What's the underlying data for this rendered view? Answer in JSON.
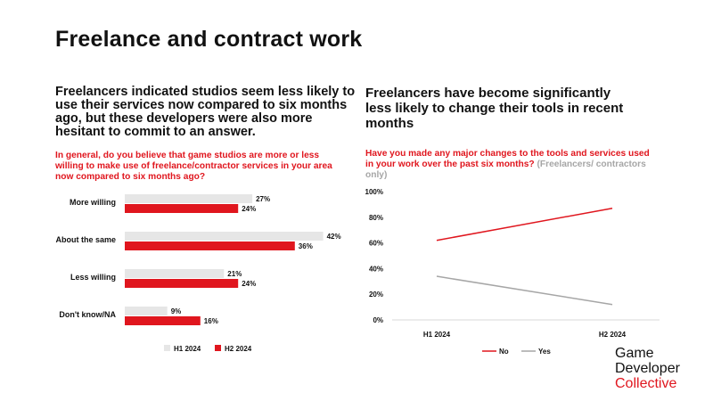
{
  "slide": {
    "title": "Freelance and contract work"
  },
  "left": {
    "heading": "Freelancers indicated studios seem less likely to use their services now compared to six months ago, but these developers were also more hesitant to commit to an answer.",
    "question": "In general, do you believe that game studios are more or less willing to make use of freelance/contractor services in your area now compared to six months ago?"
  },
  "right": {
    "heading": "Freelancers have become significantly less likely to change their tools in recent months",
    "question_main": "Have you made any major changes to the tools and services used in your work over the past six months?",
    "question_note": "(Freelancers/ contractors only)"
  },
  "brand": {
    "line1": "Game",
    "line2": "Developer",
    "line3": "Collective"
  },
  "colors": {
    "red": "#e0161e",
    "gray": "#e6e6e6",
    "gray_line": "#a6a6a6"
  },
  "chart_data": [
    {
      "type": "bar",
      "orientation": "horizontal",
      "categories": [
        "More willing",
        "About the same",
        "Less willing",
        "Don't know/NA"
      ],
      "series": [
        {
          "name": "H1 2024",
          "values": [
            27,
            42,
            21,
            9
          ],
          "labels": [
            "27%",
            "42%",
            "21%",
            "9%"
          ]
        },
        {
          "name": "H2 2024",
          "values": [
            24,
            36,
            24,
            16
          ],
          "labels": [
            "24%",
            "36%",
            "24%",
            "16%"
          ]
        }
      ],
      "legend": "bottom"
    },
    {
      "type": "line",
      "x": [
        "H1 2024",
        "H2 2024"
      ],
      "series": [
        {
          "name": "No",
          "values": [
            62,
            87
          ]
        },
        {
          "name": "Yes",
          "values": [
            34,
            12
          ]
        }
      ],
      "yticks": [
        "100%",
        "80%",
        "60%",
        "40%",
        "20%",
        "0%"
      ],
      "ylim": [
        0,
        100
      ],
      "grid": false,
      "legend": "bottom"
    }
  ]
}
